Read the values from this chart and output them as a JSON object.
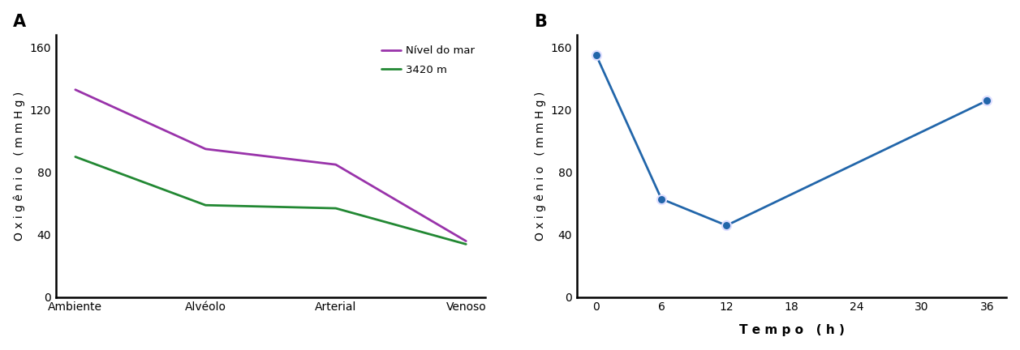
{
  "panel_A": {
    "label": "A",
    "categories": [
      "Ambiente",
      "Alvéolo",
      "Arterial",
      "Venoso"
    ],
    "series": [
      {
        "name": "Nível do mar",
        "values": [
          133,
          95,
          85,
          36
        ],
        "color": "#9933aa"
      },
      {
        "name": "3420 m",
        "values": [
          90,
          59,
          57,
          34
        ],
        "color": "#228833"
      }
    ],
    "ylabel": "Oxigênio (mmHg)",
    "ylim": [
      0,
      168
    ],
    "yticks": [
      0,
      40,
      80,
      120,
      160
    ],
    "yticklabels": [
      "0",
      "40",
      "80",
      "120",
      "160"
    ]
  },
  "panel_B": {
    "label": "B",
    "x": [
      0,
      6,
      12,
      36
    ],
    "y": [
      155,
      63,
      46,
      126
    ],
    "color": "#2266aa",
    "marker_color": "#2266aa",
    "ylabel": "Oxigênio (mmHg)",
    "xlabel": "Tempo (h)",
    "ylim": [
      0,
      168
    ],
    "yticks": [
      0,
      40,
      80,
      120,
      160
    ],
    "yticklabels": [
      "0",
      "40",
      "80",
      "120",
      "160"
    ],
    "xticks": [
      0,
      6,
      12,
      18,
      24,
      30,
      36
    ]
  },
  "background_color": "#ffffff",
  "label_fontsize": 15,
  "tick_fontsize": 10,
  "axis_label_fontsize": 10,
  "xlabel_fontsize": 11
}
